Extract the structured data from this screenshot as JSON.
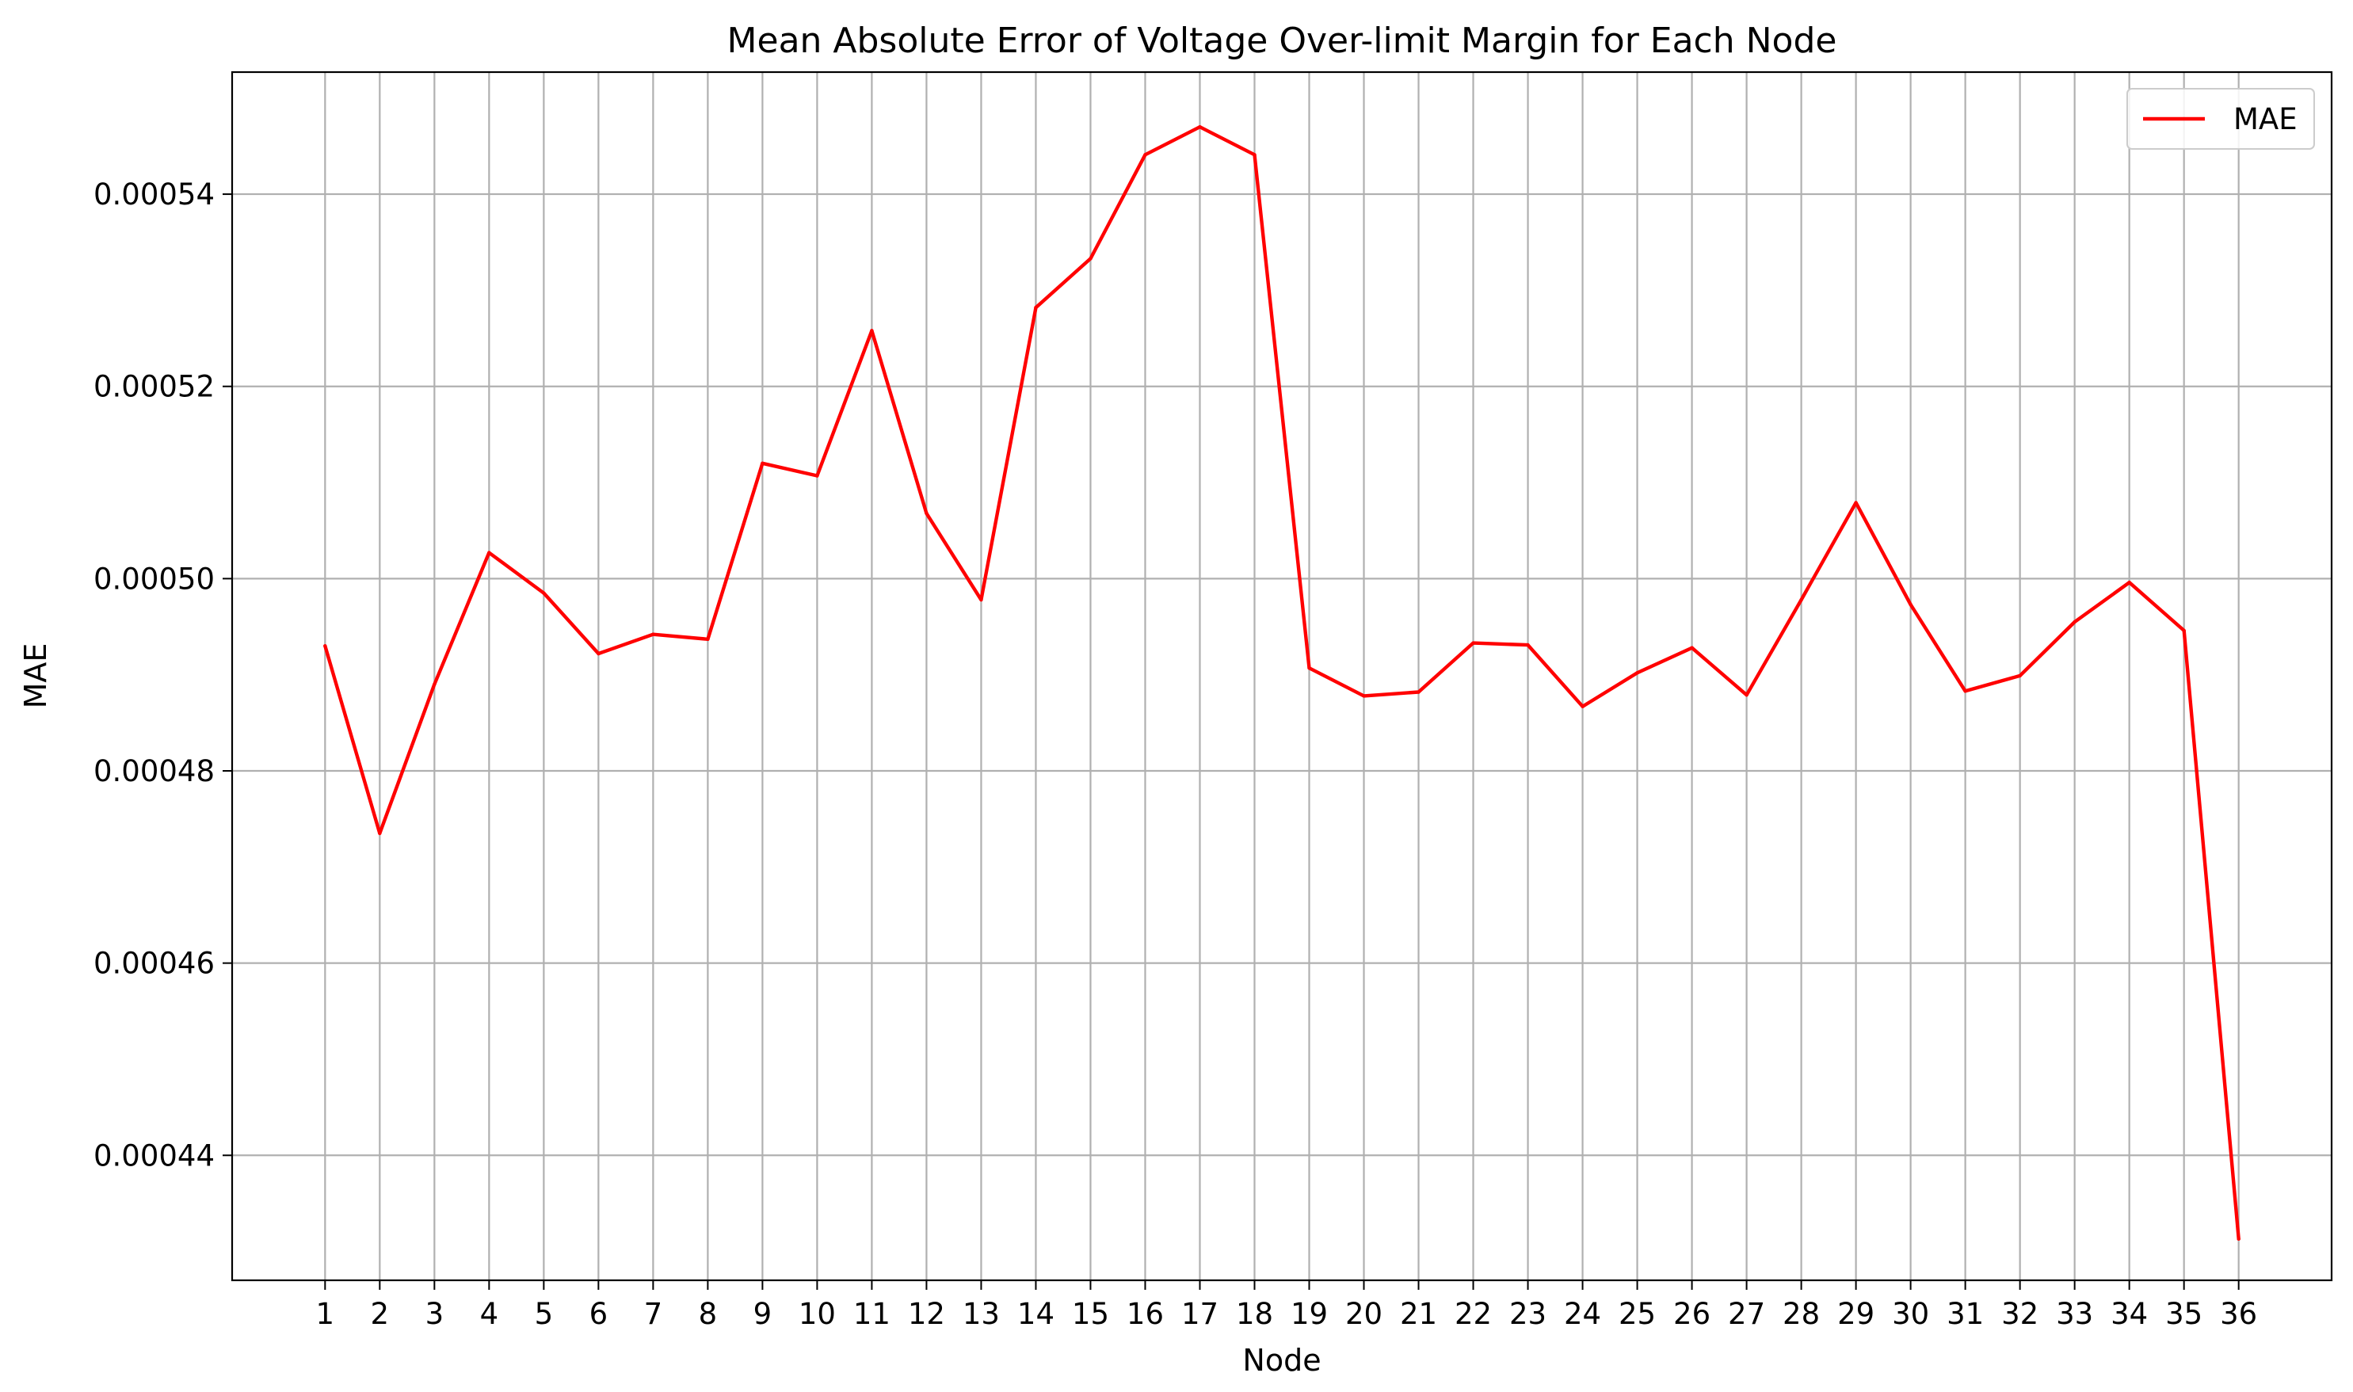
{
  "chart_data": {
    "type": "line",
    "title": "Mean Absolute Error of Voltage Over-limit Margin for Each Node",
    "xlabel": "Node",
    "ylabel": "MAE",
    "x": [
      1,
      2,
      3,
      4,
      5,
      6,
      7,
      8,
      9,
      10,
      11,
      12,
      13,
      14,
      15,
      16,
      17,
      18,
      19,
      20,
      21,
      22,
      23,
      24,
      25,
      26,
      27,
      28,
      29,
      30,
      31,
      32,
      33,
      34,
      35,
      36
    ],
    "x_tick_labels": [
      "1",
      "2",
      "3",
      "4",
      "5",
      "6",
      "7",
      "8",
      "9",
      "10",
      "11",
      "12",
      "13",
      "14",
      "15",
      "16",
      "17",
      "18",
      "19",
      "20",
      "21",
      "22",
      "23",
      "24",
      "25",
      "26",
      "27",
      "28",
      "29",
      "30",
      "31",
      "32",
      "33",
      "34",
      "35",
      "36"
    ],
    "y_ticks": [
      0.00044,
      0.00046,
      0.00048,
      0.0005,
      0.00052,
      0.00054
    ],
    "y_tick_labels": [
      "0.00044",
      "0.00046",
      "0.00048",
      "0.00050",
      "0.00052",
      "0.00054"
    ],
    "xlim": [
      -0.7,
      37.7
    ],
    "ylim": [
      0.000427,
      0.0005527
    ],
    "grid": true,
    "legend_position": "top-right",
    "series": [
      {
        "name": "MAE",
        "color": "#ff0000",
        "values": [
          0.000493,
          0.0004735,
          0.000489,
          0.0005027,
          0.0004985,
          0.0004922,
          0.0004942,
          0.0004937,
          0.000512,
          0.0005107,
          0.0005258,
          0.0005068,
          0.0004978,
          0.0005282,
          0.0005333,
          0.0005441,
          0.000547,
          0.0005441,
          0.0004907,
          0.0004878,
          0.0004882,
          0.0004933,
          0.0004931,
          0.0004867,
          0.0004902,
          0.0004928,
          0.0004879,
          0.0004978,
          0.0005079,
          0.0004973,
          0.0004883,
          0.0004899,
          0.0004955,
          0.0004996,
          0.0004946,
          0.0004313
        ]
      }
    ]
  }
}
